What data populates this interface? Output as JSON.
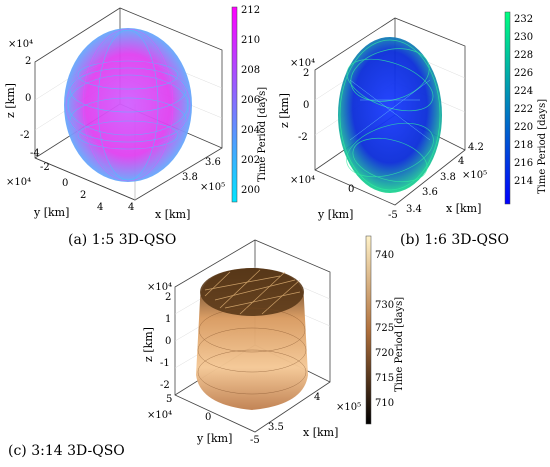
{
  "figure": {
    "panels": [
      {
        "id": "a",
        "caption": "(a) 1:5 3D-QSO",
        "z_exponent": "×10⁴",
        "y_exponent": "×10⁴",
        "x_exponent": "×10⁵",
        "z_label": "z [km]",
        "y_label": "y [km]",
        "x_label": "x [km]",
        "z_ticks": [
          "2",
          "0",
          "-2"
        ],
        "y_ticks": [
          "-4",
          "-2",
          "0",
          "2",
          "4"
        ],
        "x_ticks": [
          "3.6",
          "3.8",
          "4"
        ],
        "colorbar_label": "Time Period [days]",
        "colorbar_ticks": [
          "212",
          "210",
          "208",
          "206",
          "204",
          "202",
          "200"
        ],
        "colormap": [
          "#00e5ff",
          "#ff00ff"
        ]
      },
      {
        "id": "b",
        "caption": "(b) 1:6 3D-QSO",
        "z_exponent": "×10⁴",
        "y_exponent": "×10⁴",
        "x_exponent": "×10⁵",
        "z_label": "z [km]",
        "y_label": "y [km]",
        "x_label": "x [km]",
        "z_ticks": [
          "2",
          "0",
          "-2"
        ],
        "y_ticks": [
          "0",
          "-5"
        ],
        "x_ticks": [
          "4.2",
          "4",
          "3.8",
          "3.6",
          "3.4"
        ],
        "colorbar_label": "Time Period [days]",
        "colorbar_ticks": [
          "232",
          "230",
          "228",
          "226",
          "224",
          "222",
          "220",
          "218",
          "216",
          "214"
        ],
        "colormap": [
          "#0000ff",
          "#00ff80"
        ]
      },
      {
        "id": "c",
        "caption": "(c) 3:14 3D-QSO",
        "z_exponent": "×10⁴",
        "y_exponent": "×10⁴",
        "x_exponent": "×10⁵",
        "z_label": "z [km]",
        "y_label": "y [km]",
        "x_label": "x [km]",
        "z_ticks": [
          "2",
          "1",
          "0",
          "-1",
          "-2"
        ],
        "y_ticks": [
          "5",
          "0",
          "-5"
        ],
        "x_ticks": [
          "4",
          "3.5"
        ],
        "colorbar_label": "Time Period [days]",
        "colorbar_ticks": [
          "740",
          "730",
          "725",
          "720",
          "715",
          "710"
        ],
        "colormap": [
          "#000000",
          "#fff2c8"
        ]
      }
    ]
  },
  "chart_data": [
    {
      "type": "scatter",
      "title": "",
      "zlabel": "z [km]",
      "ylabel": "y [km]",
      "xlabel": "x [km]",
      "colorbar": {
        "label": "Time Period [days]",
        "range": [
          199,
          212
        ]
      },
      "zlim_e4": [
        -2.5,
        2.5
      ],
      "ylim_e4": [
        -4,
        4
      ],
      "xlim_e5": [
        3.5,
        4.05
      ],
      "grid": true
    },
    {
      "type": "scatter",
      "title": "",
      "zlabel": "z [km]",
      "ylabel": "y [km]",
      "xlabel": "x [km]",
      "colorbar": {
        "label": "Time Period [days]",
        "range": [
          213,
          233
        ]
      },
      "zlim_e4": [
        -2.5,
        2.5
      ],
      "ylim_e4": [
        -5,
        5
      ],
      "xlim_e5": [
        3.4,
        4.2
      ],
      "grid": true
    },
    {
      "type": "scatter",
      "title": "",
      "zlabel": "z [km]",
      "ylabel": "y [km]",
      "xlabel": "x [km]",
      "colorbar": {
        "label": "Time Period [days]",
        "range": [
          708,
          742
        ]
      },
      "zlim_e4": [
        -2,
        2
      ],
      "ylim_e4": [
        -5,
        5
      ],
      "xlim_e5": [
        3.4,
        4.2
      ],
      "grid": true
    }
  ]
}
